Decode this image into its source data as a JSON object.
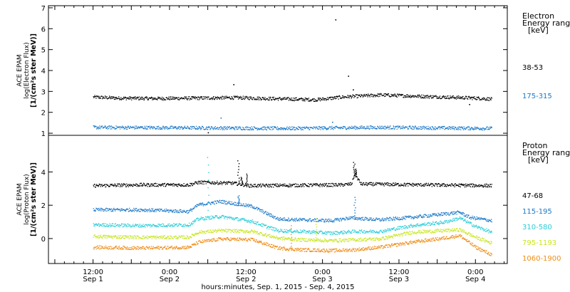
{
  "chart_data": [
    {
      "type": "scatter",
      "panel": "electron",
      "ylabel_lines": [
        "ACE EPAM",
        "log(Electron Flux)",
        "[1/(cm²s ster MeV)]"
      ],
      "ylim": [
        0.9,
        7.1
      ],
      "yticks": [
        1,
        2,
        3,
        4,
        5,
        6,
        7
      ],
      "legend_title": [
        "Electron",
        "Energy range",
        "[keV]"
      ],
      "series": [
        {
          "name": "38-53",
          "color": "#000000",
          "base": 2.65,
          "profile": [
            [
              0,
              2.75
            ],
            [
              8,
              2.7
            ],
            [
              20,
              2.68
            ],
            [
              45,
              2.72
            ],
            [
              70,
              2.62
            ],
            [
              78,
              2.75
            ],
            [
              90,
              2.85
            ],
            [
              100,
              2.8
            ],
            [
              120,
              2.7
            ],
            [
              125,
              2.65
            ]
          ],
          "outliers": [
            [
              44,
              3.35
            ],
            [
              76,
              6.45
            ],
            [
              80,
              3.75
            ],
            [
              81.5,
              3.1
            ],
            [
              118,
              2.4
            ],
            [
              36,
              1.05
            ]
          ]
        },
        {
          "name": "175-315",
          "color": "#1a78c8",
          "base": 1.25,
          "profile": [
            [
              0,
              1.3
            ],
            [
              30,
              1.28
            ],
            [
              60,
              1.25
            ],
            [
              90,
              1.3
            ],
            [
              125,
              1.25
            ]
          ],
          "outliers": [
            [
              40,
              1.75
            ],
            [
              75,
              1.55
            ]
          ]
        }
      ]
    },
    {
      "type": "scatter",
      "panel": "proton",
      "ylabel_lines": [
        "ACE EPAM",
        "log(Proton Flux)",
        "[1/(cm²s ster MeV)]"
      ],
      "ylim": [
        -1.5,
        6.2
      ],
      "yticks": [
        0,
        2,
        4
      ],
      "legend_title": [
        "Proton",
        "Energy range",
        "[keV]"
      ],
      "series": [
        {
          "name": "47-68",
          "color": "#000000",
          "profile": [
            [
              0,
              3.2
            ],
            [
              15,
              3.25
            ],
            [
              30,
              3.25
            ],
            [
              33,
              3.4
            ],
            [
              44,
              3.35
            ],
            [
              49,
              3.2
            ],
            [
              78,
              3.25
            ],
            [
              81,
              3.3
            ],
            [
              82,
              3.9
            ],
            [
              84,
              3.3
            ],
            [
              125,
              3.2
            ]
          ],
          "spikes": [
            [
              45.5,
              4.7
            ],
            [
              46.5,
              3.7
            ],
            [
              48,
              3.9
            ],
            [
              81.8,
              4.6
            ],
            [
              82.3,
              4.2
            ]
          ]
        },
        {
          "name": "115-195",
          "color": "#1a78c8",
          "profile": [
            [
              0,
              1.75
            ],
            [
              15,
              1.75
            ],
            [
              30,
              1.65
            ],
            [
              33,
              2.05
            ],
            [
              40,
              2.25
            ],
            [
              45,
              2.1
            ],
            [
              50,
              1.95
            ],
            [
              52,
              1.75
            ],
            [
              58,
              1.2
            ],
            [
              65,
              1.15
            ],
            [
              75,
              1.1
            ],
            [
              80,
              1.25
            ],
            [
              82,
              1.25
            ],
            [
              90,
              1.15
            ],
            [
              100,
              1.3
            ],
            [
              110,
              1.5
            ],
            [
              115,
              1.6
            ],
            [
              118,
              1.3
            ],
            [
              125,
              1.1
            ]
          ],
          "spikes": [
            [
              82,
              2.5
            ],
            [
              45.5,
              2.6
            ]
          ]
        },
        {
          "name": "310-580",
          "color": "#28cdd8",
          "profile": [
            [
              0,
              0.85
            ],
            [
              15,
              0.8
            ],
            [
              30,
              0.85
            ],
            [
              33,
              1.2
            ],
            [
              40,
              1.35
            ],
            [
              50,
              1.05
            ],
            [
              52,
              0.9
            ],
            [
              58,
              0.5
            ],
            [
              65,
              0.45
            ],
            [
              75,
              0.35
            ],
            [
              82,
              0.45
            ],
            [
              90,
              0.45
            ],
            [
              100,
              0.8
            ],
            [
              110,
              1.0
            ],
            [
              115,
              1.25
            ],
            [
              120,
              0.75
            ],
            [
              125,
              0.4
            ]
          ],
          "spikes": [
            [
              36,
              4.9
            ]
          ]
        },
        {
          "name": "795-1193",
          "color": "#c8e61e",
          "profile": [
            [
              0,
              0.15
            ],
            [
              15,
              0.1
            ],
            [
              30,
              0.1
            ],
            [
              33,
              0.4
            ],
            [
              40,
              0.5
            ],
            [
              50,
              0.45
            ],
            [
              58,
              0.05
            ],
            [
              65,
              -0.05
            ],
            [
              75,
              -0.1
            ],
            [
              82,
              -0.05
            ],
            [
              90,
              0.0
            ],
            [
              100,
              0.4
            ],
            [
              110,
              0.5
            ],
            [
              115,
              0.55
            ],
            [
              120,
              0.1
            ],
            [
              125,
              -0.25
            ]
          ],
          "spikes": [
            [
              70,
              1.2
            ]
          ]
        },
        {
          "name": "1060-1900",
          "color": "#f08c14",
          "profile": [
            [
              0,
              -0.5
            ],
            [
              15,
              -0.55
            ],
            [
              30,
              -0.5
            ],
            [
              33,
              -0.2
            ],
            [
              40,
              0.0
            ],
            [
              50,
              -0.05
            ],
            [
              58,
              -0.55
            ],
            [
              65,
              -0.65
            ],
            [
              75,
              -0.7
            ],
            [
              82,
              -0.65
            ],
            [
              90,
              -0.5
            ],
            [
              100,
              -0.2
            ],
            [
              110,
              0.05
            ],
            [
              115,
              0.2
            ],
            [
              120,
              -0.5
            ],
            [
              125,
              -0.95
            ]
          ],
          "spikes": [
            [
              62,
              0.8
            ]
          ]
        }
      ]
    }
  ],
  "x_axis": {
    "range_hours": [
      -14,
      130
    ],
    "data_end_hours": 125,
    "ticks": [
      {
        "h": 0,
        "time": "12:00",
        "day": "Sep 1"
      },
      {
        "h": 24,
        "time": "0:00",
        "day": "Sep 2"
      },
      {
        "h": 48,
        "time": "12:00",
        "day": "Sep 2"
      },
      {
        "h": 72,
        "time": "0:00",
        "day": "Sep 3"
      },
      {
        "h": 96,
        "time": "12:00",
        "day": "Sep 3"
      },
      {
        "h": 120,
        "time": "0:00",
        "day": "Sep 4"
      }
    ],
    "label": "hours:minutes, Sep.  1, 2015 - Sep.  4, 2015"
  }
}
